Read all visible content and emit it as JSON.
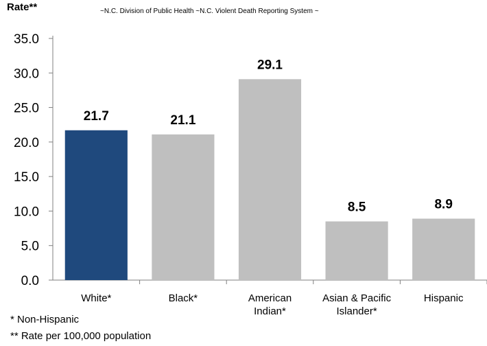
{
  "chart_data": {
    "type": "bar",
    "ylabel": "Rate**",
    "source_note": "~N.C. Division of Public Health ~N.C. Violent Death Reporting System ~",
    "categories": [
      [
        "White*"
      ],
      [
        "Black*"
      ],
      [
        "American",
        "Indian*"
      ],
      [
        "Asian & Pacific",
        "Islander*"
      ],
      [
        "Hispanic"
      ]
    ],
    "values": [
      21.7,
      21.1,
      29.1,
      8.5,
      8.9
    ],
    "value_labels": [
      "21.7",
      "21.1",
      "29.1",
      "8.5",
      "8.9"
    ],
    "yticks": [
      "0.0",
      "5.0",
      "10.0",
      "15.0",
      "20.0",
      "25.0",
      "30.0",
      "35.0"
    ],
    "ylim": [
      0,
      35
    ],
    "grid": false,
    "highlight_color": "#1f497d",
    "bar_color": "#bfbfbf"
  },
  "footnotes": {
    "non_hispanic": "* Non-Hispanic",
    "rate": "** Rate per 100,000 population"
  }
}
